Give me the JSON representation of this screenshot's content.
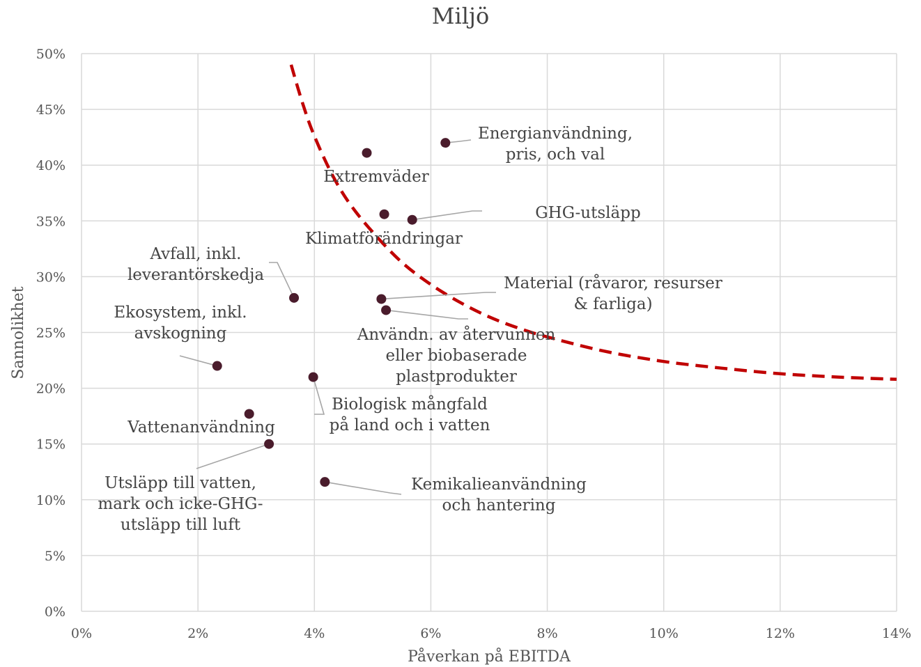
{
  "chart_data": {
    "type": "scatter",
    "title": "Miljö",
    "xlabel": "Påverkan på EBITDA",
    "ylabel": "Sannolikhet",
    "xlim": [
      0,
      14
    ],
    "ylim": [
      0,
      50
    ],
    "x_ticks": [
      0,
      2,
      4,
      6,
      8,
      10,
      12,
      14
    ],
    "x_tick_labels": [
      "0%",
      "2%",
      "4%",
      "6%",
      "8%",
      "10%",
      "12%",
      "14%"
    ],
    "y_ticks": [
      0,
      5,
      10,
      15,
      20,
      25,
      30,
      35,
      40,
      45,
      50
    ],
    "y_tick_labels": [
      "0%",
      "5%",
      "10%",
      "15%",
      "20%",
      "25%",
      "30%",
      "35%",
      "40%",
      "45%",
      "50%"
    ],
    "grid": true,
    "point_color": "#4a1c2c",
    "curve_color": "#c00000",
    "points": [
      {
        "label": [
          "Energianvändning,",
          "pris, och val"
        ],
        "x": 6.25,
        "y": 42.0
      },
      {
        "label": [
          "Extremväder"
        ],
        "x": 4.9,
        "y": 41.1
      },
      {
        "label": [
          "GHG-utsläpp"
        ],
        "x": 5.68,
        "y": 35.1
      },
      {
        "label": [
          "Klimatförändringar"
        ],
        "x": 5.2,
        "y": 35.6
      },
      {
        "label": [
          "Avfall, inkl.",
          "leverantörskedja"
        ],
        "x": 3.65,
        "y": 28.1
      },
      {
        "label": [
          "Material (råvaror, resurser",
          "& farliga)"
        ],
        "x": 5.15,
        "y": 28.0
      },
      {
        "label": [
          "Användn. av återvunnen",
          "eller biobaserade",
          "plastprodukter"
        ],
        "x": 5.23,
        "y": 27.0
      },
      {
        "label": [
          "Ekosystem, inkl.",
          "avskogning"
        ],
        "x": 2.33,
        "y": 22.0
      },
      {
        "label": [
          "Biologisk mångfald",
          "på land och i vatten"
        ],
        "x": 3.98,
        "y": 21.0
      },
      {
        "label": [
          "Vattenanvändning"
        ],
        "x": 2.88,
        "y": 17.7
      },
      {
        "label": [
          "Utsläpp till vatten,",
          "mark och icke-GHG-",
          "utsläpp till luft"
        ],
        "x": 3.22,
        "y": 15.0
      },
      {
        "label": [
          "Kemikalieanvändning",
          "och hantering"
        ],
        "x": 4.18,
        "y": 11.6
      }
    ],
    "threshold_curve": {
      "style": "dashed",
      "x": [
        3.6,
        3.8,
        4.0,
        4.3,
        4.6,
        5.0,
        5.5,
        6.0,
        6.5,
        7.0,
        7.5,
        8.0,
        9.0,
        10.0,
        11.0,
        12.0,
        13.0,
        14.0
      ],
      "y": [
        49.0,
        45.5,
        42.6,
        39.2,
        36.6,
        34.0,
        31.3,
        29.3,
        27.7,
        26.4,
        25.4,
        24.6,
        23.3,
        22.4,
        21.8,
        21.3,
        21.0,
        20.8
      ]
    }
  }
}
